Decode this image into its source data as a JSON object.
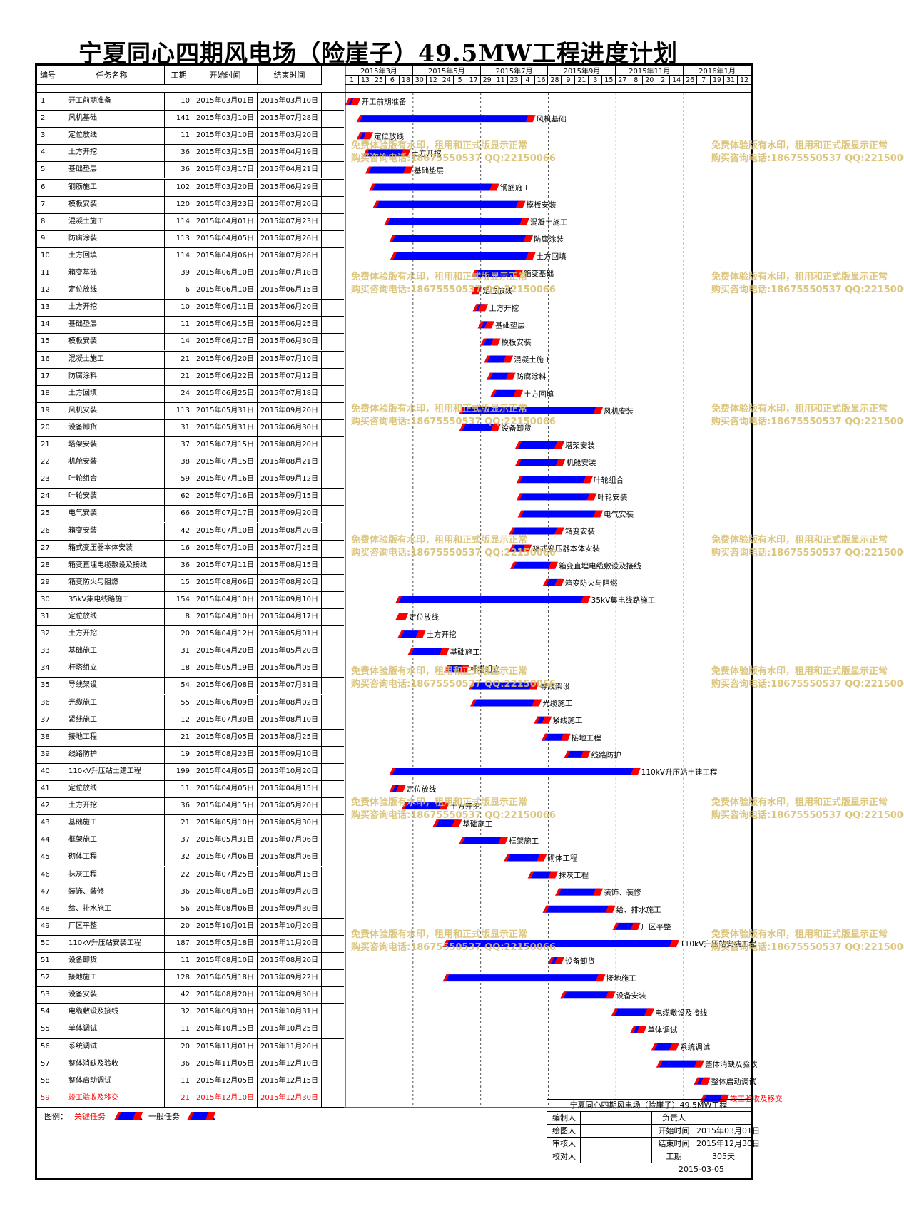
{
  "title": "宁夏同心四期风电场（险崖子）49.5MW工程进度计划",
  "columns": {
    "no": "编号",
    "name": "任务名称",
    "days": "工期",
    "start": "开始时间",
    "end": "结束时间"
  },
  "months": [
    "2015年3月",
    "2015年5月",
    "2015年7月",
    "2015年9月",
    "2015年11月",
    "2016年1月"
  ],
  "day_ticks": [
    "1",
    "13",
    "25",
    "6",
    "18",
    "30",
    "12",
    "24",
    "5",
    "17",
    "29",
    "11",
    "23",
    "4",
    "16",
    "28",
    "9",
    "21",
    "3",
    "15",
    "27",
    "8",
    "20",
    "2",
    "14",
    "26",
    "7",
    "19",
    "31",
    "12"
  ],
  "colors": {
    "critical": "#ff0000",
    "general": "#0000ff",
    "bar_end": "#ff0000",
    "watermark": "#d9c070"
  },
  "watermark": {
    "line1": "免费体验版有水印，租用和正式版显示正常",
    "line2": "购买咨询电话:18675550537 QQ:22150066"
  },
  "legend": {
    "label": "图例：",
    "critical": "关键任务",
    "general": "一般任务"
  },
  "info": {
    "project": "宁夏同心四期风电场（险崖子）49.5MW工程",
    "editor_label": "编制人",
    "owner_label": "负责人",
    "drawer_label": "绘图人",
    "start_label": "开始时间",
    "start_value": "2015年03月01日",
    "reviewer_label": "审核人",
    "end_label": "结束时间",
    "end_value": "2015年12月30日",
    "checker_label": "校对人",
    "duration_label": "工期",
    "duration_value": "305天",
    "date": "2015-03-05"
  },
  "chart_data": {
    "type": "gantt",
    "x_range": [
      "2015-03-01",
      "2016-01-19"
    ],
    "tasks": [
      {
        "no": "1",
        "name": "开工前期准备",
        "days": "10",
        "start": "2015年03月01日",
        "end": "2015年03月10日",
        "s": "2015-03-01",
        "e": "2015-03-10",
        "critical": false
      },
      {
        "no": "2",
        "name": "风机基础",
        "days": "141",
        "start": "2015年03月10日",
        "end": "2015年07月28日",
        "s": "2015-03-10",
        "e": "2015-07-28",
        "critical": false
      },
      {
        "no": "3",
        "name": "定位放线",
        "days": "11",
        "start": "2015年03月10日",
        "end": "2015年03月20日",
        "s": "2015-03-10",
        "e": "2015-03-20",
        "critical": false
      },
      {
        "no": "4",
        "name": "土方开挖",
        "days": "36",
        "start": "2015年03月15日",
        "end": "2015年04月19日",
        "s": "2015-03-15",
        "e": "2015-04-19",
        "critical": false
      },
      {
        "no": "5",
        "name": "基础垫层",
        "days": "36",
        "start": "2015年03月17日",
        "end": "2015年04月21日",
        "s": "2015-03-17",
        "e": "2015-04-21",
        "critical": false
      },
      {
        "no": "6",
        "name": "钢筋施工",
        "days": "102",
        "start": "2015年03月20日",
        "end": "2015年06月29日",
        "s": "2015-03-20",
        "e": "2015-06-29",
        "critical": false
      },
      {
        "no": "7",
        "name": "模板安装",
        "days": "120",
        "start": "2015年03月23日",
        "end": "2015年07月20日",
        "s": "2015-03-23",
        "e": "2015-07-20",
        "critical": false
      },
      {
        "no": "8",
        "name": "混凝土施工",
        "days": "114",
        "start": "2015年04月01日",
        "end": "2015年07月23日",
        "s": "2015-04-01",
        "e": "2015-07-23",
        "critical": false
      },
      {
        "no": "9",
        "name": "防腐涂装",
        "days": "113",
        "start": "2015年04月05日",
        "end": "2015年07月26日",
        "s": "2015-04-05",
        "e": "2015-07-26",
        "critical": false
      },
      {
        "no": "10",
        "name": "土方回填",
        "days": "114",
        "start": "2015年04月06日",
        "end": "2015年07月28日",
        "s": "2015-04-06",
        "e": "2015-07-28",
        "critical": false
      },
      {
        "no": "11",
        "name": "箱变基础",
        "days": "39",
        "start": "2015年06月10日",
        "end": "2015年07月18日",
        "s": "2015-06-10",
        "e": "2015-07-18",
        "critical": false
      },
      {
        "no": "12",
        "name": "定位放线",
        "days": "6",
        "start": "2015年06月10日",
        "end": "2015年06月15日",
        "s": "2015-06-10",
        "e": "2015-06-15",
        "critical": false
      },
      {
        "no": "13",
        "name": "土方开挖",
        "days": "10",
        "start": "2015年06月11日",
        "end": "2015年06月20日",
        "s": "2015-06-11",
        "e": "2015-06-20",
        "critical": false
      },
      {
        "no": "14",
        "name": "基础垫层",
        "days": "11",
        "start": "2015年06月15日",
        "end": "2015年06月25日",
        "s": "2015-06-15",
        "e": "2015-06-25",
        "critical": false
      },
      {
        "no": "15",
        "name": "模板安装",
        "days": "14",
        "start": "2015年06月17日",
        "end": "2015年06月30日",
        "s": "2015-06-17",
        "e": "2015-06-30",
        "critical": false
      },
      {
        "no": "16",
        "name": "混凝土施工",
        "days": "21",
        "start": "2015年06月20日",
        "end": "2015年07月10日",
        "s": "2015-06-20",
        "e": "2015-07-10",
        "critical": false
      },
      {
        "no": "17",
        "name": "防腐涂料",
        "days": "21",
        "start": "2015年06月22日",
        "end": "2015年07月12日",
        "s": "2015-06-22",
        "e": "2015-07-12",
        "critical": false
      },
      {
        "no": "18",
        "name": "土方回填",
        "days": "24",
        "start": "2015年06月25日",
        "end": "2015年07月18日",
        "s": "2015-06-25",
        "e": "2015-07-18",
        "critical": false
      },
      {
        "no": "19",
        "name": "风机安装",
        "days": "113",
        "start": "2015年05月31日",
        "end": "2015年09月20日",
        "s": "2015-05-31",
        "e": "2015-09-20",
        "critical": false
      },
      {
        "no": "20",
        "name": "设备卸货",
        "days": "31",
        "start": "2015年05月31日",
        "end": "2015年06月30日",
        "s": "2015-05-31",
        "e": "2015-06-30",
        "critical": false
      },
      {
        "no": "21",
        "name": "塔架安装",
        "days": "37",
        "start": "2015年07月15日",
        "end": "2015年08月20日",
        "s": "2015-07-15",
        "e": "2015-08-20",
        "critical": false
      },
      {
        "no": "22",
        "name": "机舱安装",
        "days": "38",
        "start": "2015年07月15日",
        "end": "2015年08月21日",
        "s": "2015-07-15",
        "e": "2015-08-21",
        "critical": false
      },
      {
        "no": "23",
        "name": "叶轮组合",
        "days": "59",
        "start": "2015年07月16日",
        "end": "2015年09月12日",
        "s": "2015-07-16",
        "e": "2015-09-12",
        "critical": false
      },
      {
        "no": "24",
        "name": "叶轮安装",
        "days": "62",
        "start": "2015年07月16日",
        "end": "2015年09月15日",
        "s": "2015-07-16",
        "e": "2015-09-15",
        "critical": false
      },
      {
        "no": "25",
        "name": "电气安装",
        "days": "66",
        "start": "2015年07月17日",
        "end": "2015年09月20日",
        "s": "2015-07-17",
        "e": "2015-09-20",
        "critical": false
      },
      {
        "no": "26",
        "name": "箱变安装",
        "days": "42",
        "start": "2015年07月10日",
        "end": "2015年08月20日",
        "s": "2015-07-10",
        "e": "2015-08-20",
        "critical": false
      },
      {
        "no": "27",
        "name": "箱式变压器本体安装",
        "days": "16",
        "start": "2015年07月10日",
        "end": "2015年07月25日",
        "s": "2015-07-10",
        "e": "2015-07-25",
        "critical": false
      },
      {
        "no": "28",
        "name": "箱变直埋电缆敷设及接线",
        "days": "36",
        "start": "2015年07月11日",
        "end": "2015年08月15日",
        "s": "2015-07-11",
        "e": "2015-08-15",
        "critical": false
      },
      {
        "no": "29",
        "name": "箱变防火与阻燃",
        "days": "15",
        "start": "2015年08月06日",
        "end": "2015年08月20日",
        "s": "2015-08-06",
        "e": "2015-08-20",
        "critical": false
      },
      {
        "no": "30",
        "name": "35kV集电线路施工",
        "days": "154",
        "start": "2015年04月10日",
        "end": "2015年09月10日",
        "s": "2015-04-10",
        "e": "2015-09-10",
        "critical": false
      },
      {
        "no": "31",
        "name": "定位放线",
        "days": "8",
        "start": "2015年04月10日",
        "end": "2015年04月17日",
        "s": "2015-04-10",
        "e": "2015-04-17",
        "critical": false
      },
      {
        "no": "32",
        "name": "土方开挖",
        "days": "20",
        "start": "2015年04月12日",
        "end": "2015年05月01日",
        "s": "2015-04-12",
        "e": "2015-05-01",
        "critical": false
      },
      {
        "no": "33",
        "name": "基础施工",
        "days": "31",
        "start": "2015年04月20日",
        "end": "2015年05月20日",
        "s": "2015-04-20",
        "e": "2015-05-20",
        "critical": false
      },
      {
        "no": "34",
        "name": "杆塔组立",
        "days": "18",
        "start": "2015年05月19日",
        "end": "2015年06月05日",
        "s": "2015-05-19",
        "e": "2015-06-05",
        "critical": false
      },
      {
        "no": "35",
        "name": "导线架设",
        "days": "54",
        "start": "2015年06月08日",
        "end": "2015年07月31日",
        "s": "2015-06-08",
        "e": "2015-07-31",
        "critical": false
      },
      {
        "no": "36",
        "name": "光缆施工",
        "days": "55",
        "start": "2015年06月09日",
        "end": "2015年08月02日",
        "s": "2015-06-09",
        "e": "2015-08-02",
        "critical": false
      },
      {
        "no": "37",
        "name": "紧线施工",
        "days": "12",
        "start": "2015年07月30日",
        "end": "2015年08月10日",
        "s": "2015-07-30",
        "e": "2015-08-10",
        "critical": false
      },
      {
        "no": "38",
        "name": "接地工程",
        "days": "21",
        "start": "2015年08月05日",
        "end": "2015年08月25日",
        "s": "2015-08-05",
        "e": "2015-08-25",
        "critical": false
      },
      {
        "no": "39",
        "name": "线路防护",
        "days": "19",
        "start": "2015年08月23日",
        "end": "2015年09月10日",
        "s": "2015-08-23",
        "e": "2015-09-10",
        "critical": false
      },
      {
        "no": "40",
        "name": "110kV升压站土建工程",
        "days": "199",
        "start": "2015年04月05日",
        "end": "2015年10月20日",
        "s": "2015-04-05",
        "e": "2015-10-20",
        "critical": false
      },
      {
        "no": "41",
        "name": "定位放线",
        "days": "11",
        "start": "2015年04月05日",
        "end": "2015年04月15日",
        "s": "2015-04-05",
        "e": "2015-04-15",
        "critical": false
      },
      {
        "no": "42",
        "name": "土方开挖",
        "days": "36",
        "start": "2015年04月15日",
        "end": "2015年05月20日",
        "s": "2015-04-15",
        "e": "2015-05-20",
        "critical": false
      },
      {
        "no": "43",
        "name": "基础施工",
        "days": "21",
        "start": "2015年05月10日",
        "end": "2015年05月30日",
        "s": "2015-05-10",
        "e": "2015-05-30",
        "critical": false
      },
      {
        "no": "44",
        "name": "框架施工",
        "days": "37",
        "start": "2015年05月31日",
        "end": "2015年07月06日",
        "s": "2015-05-31",
        "e": "2015-07-06",
        "critical": false
      },
      {
        "no": "45",
        "name": "砌体工程",
        "days": "32",
        "start": "2015年07月06日",
        "end": "2015年08月06日",
        "s": "2015-07-06",
        "e": "2015-08-06",
        "critical": false
      },
      {
        "no": "46",
        "name": "抹灰工程",
        "days": "22",
        "start": "2015年07月25日",
        "end": "2015年08月15日",
        "s": "2015-07-25",
        "e": "2015-08-15",
        "critical": false
      },
      {
        "no": "47",
        "name": "装饰、装修",
        "days": "36",
        "start": "2015年08月16日",
        "end": "2015年09月20日",
        "s": "2015-08-16",
        "e": "2015-09-20",
        "critical": false
      },
      {
        "no": "48",
        "name": "给、排水施工",
        "days": "56",
        "start": "2015年08月06日",
        "end": "2015年09月30日",
        "s": "2015-08-06",
        "e": "2015-09-30",
        "critical": false
      },
      {
        "no": "49",
        "name": "厂区平整",
        "days": "20",
        "start": "2015年10月01日",
        "end": "2015年10月20日",
        "s": "2015-10-01",
        "e": "2015-10-20",
        "critical": false
      },
      {
        "no": "50",
        "name": "110kV升压站安装工程",
        "days": "187",
        "start": "2015年05月18日",
        "end": "2015年11月20日",
        "s": "2015-05-18",
        "e": "2015-11-20",
        "critical": false
      },
      {
        "no": "51",
        "name": "设备卸货",
        "days": "11",
        "start": "2015年08月10日",
        "end": "2015年08月20日",
        "s": "2015-08-10",
        "e": "2015-08-20",
        "critical": false
      },
      {
        "no": "52",
        "name": "接地施工",
        "days": "128",
        "start": "2015年05月18日",
        "end": "2015年09月22日",
        "s": "2015-05-18",
        "e": "2015-09-22",
        "critical": false
      },
      {
        "no": "53",
        "name": "设备安装",
        "days": "42",
        "start": "2015年08月20日",
        "end": "2015年09月30日",
        "s": "2015-08-20",
        "e": "2015-09-30",
        "critical": false
      },
      {
        "no": "54",
        "name": "电缆敷设及接线",
        "days": "32",
        "start": "2015年09月30日",
        "end": "2015年10月31日",
        "s": "2015-09-30",
        "e": "2015-10-31",
        "critical": false
      },
      {
        "no": "55",
        "name": "单体调试",
        "days": "11",
        "start": "2015年10月15日",
        "end": "2015年10月25日",
        "s": "2015-10-15",
        "e": "2015-10-25",
        "critical": false
      },
      {
        "no": "56",
        "name": "系统调试",
        "days": "20",
        "start": "2015年11月01日",
        "end": "2015年11月20日",
        "s": "2015-11-01",
        "e": "2015-11-20",
        "critical": false
      },
      {
        "no": "57",
        "name": "整体消缺及验收",
        "days": "36",
        "start": "2015年11月05日",
        "end": "2015年12月10日",
        "s": "2015-11-05",
        "e": "2015-12-10",
        "critical": false
      },
      {
        "no": "58",
        "name": "整体启动调试",
        "days": "11",
        "start": "2015年12月05日",
        "end": "2015年12月15日",
        "s": "2015-12-05",
        "e": "2015-12-15",
        "critical": false
      },
      {
        "no": "59",
        "name": "竣工验收及移交",
        "days": "21",
        "start": "2015年12月10日",
        "end": "2015年12月30日",
        "s": "2015-12-10",
        "e": "2015-12-30",
        "critical": true
      }
    ]
  }
}
